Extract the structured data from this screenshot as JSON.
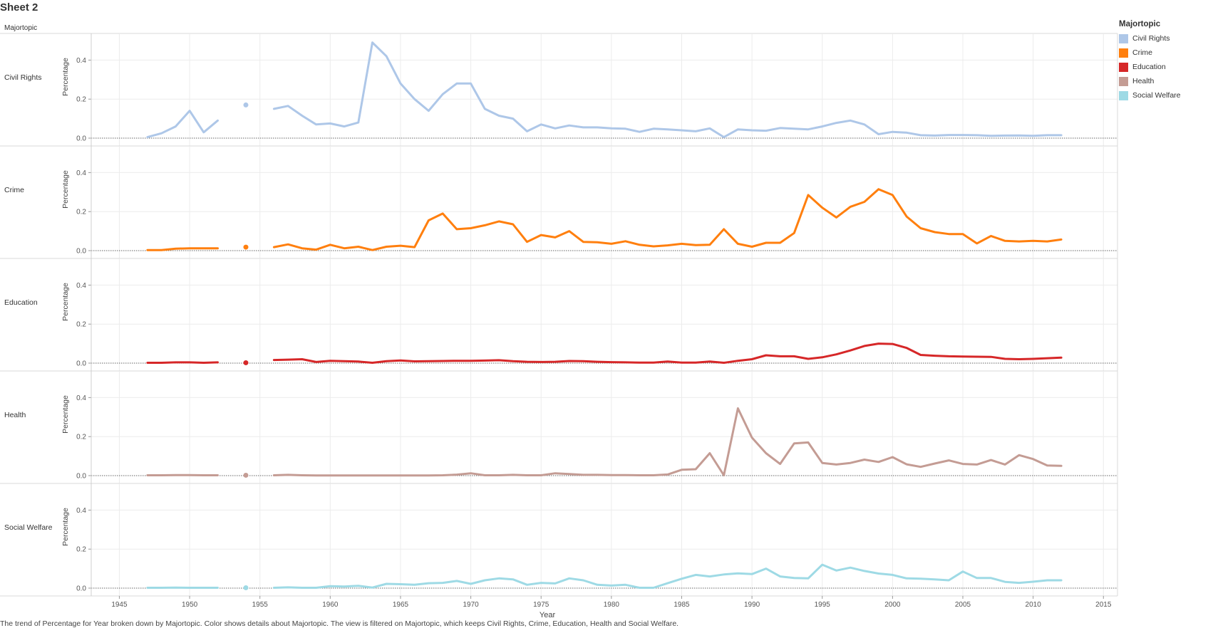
{
  "sheet": {
    "title": "Sheet 2",
    "facet_header": "Majortopic",
    "caption": "The trend of Percentage for Year broken down by Majortopic.  Color shows details about Majortopic. The view is filtered on Majortopic, which keeps Civil Rights, Crime, Education, Health and Social Welfare."
  },
  "legend": {
    "title": "Majortopic",
    "items": [
      {
        "label": "Civil Rights",
        "color": "#aec7e8"
      },
      {
        "label": "Crime",
        "color": "#ff7f0e"
      },
      {
        "label": "Education",
        "color": "#d62728"
      },
      {
        "label": "Health",
        "color": "#c49c94"
      },
      {
        "label": "Social Welfare",
        "color": "#9edae5"
      }
    ]
  },
  "chart_data": {
    "type": "line",
    "xlabel": "Year",
    "ylabel": "Percentage",
    "xlim": [
      1943,
      2016
    ],
    "ylim": [
      0,
      0.5
    ],
    "x_ticks": [
      1945,
      1950,
      1955,
      1960,
      1965,
      1970,
      1975,
      1980,
      1985,
      1990,
      1995,
      2000,
      2005,
      2010,
      2015
    ],
    "x_tick_labels": [
      "1945",
      "1950",
      "1955",
      "1960",
      "1965",
      "1970",
      "1975",
      "1980",
      "1985",
      "1990",
      "1995",
      "2000",
      "2005",
      "2010",
      "2015"
    ],
    "y_ticks": [
      0,
      0.2,
      0.4
    ],
    "y_tick_labels": [
      "0.0",
      "0.2",
      "0.4"
    ],
    "grid": true,
    "legend_position": "right",
    "x": [
      1947,
      1948,
      1949,
      1950,
      1951,
      1952,
      1954,
      1956,
      1957,
      1958,
      1959,
      1960,
      1961,
      1962,
      1963,
      1964,
      1965,
      1966,
      1967,
      1968,
      1969,
      1970,
      1971,
      1972,
      1973,
      1974,
      1975,
      1976,
      1977,
      1978,
      1979,
      1980,
      1981,
      1982,
      1983,
      1984,
      1985,
      1986,
      1987,
      1988,
      1989,
      1990,
      1991,
      1992,
      1993,
      1994,
      1995,
      1996,
      1997,
      1998,
      1999,
      2000,
      2001,
      2002,
      2003,
      2004,
      2005,
      2006,
      2007,
      2008,
      2009,
      2010,
      2011,
      2012
    ],
    "series": [
      {
        "name": "Civil Rights",
        "color": "#aec7e8",
        "values": [
          0.005,
          0.025,
          0.06,
          0.14,
          0.03,
          0.09,
          0.17,
          0.15,
          0.165,
          0.115,
          0.07,
          0.075,
          0.06,
          0.08,
          0.49,
          0.42,
          0.28,
          0.2,
          0.14,
          0.225,
          0.28,
          0.28,
          0.15,
          0.115,
          0.1,
          0.035,
          0.07,
          0.05,
          0.065,
          0.055,
          0.055,
          0.05,
          0.048,
          0.032,
          0.048,
          0.045,
          0.04,
          0.035,
          0.05,
          0.005,
          0.045,
          0.04,
          0.038,
          0.052,
          0.048,
          0.045,
          0.06,
          0.078,
          0.09,
          0.07,
          0.02,
          0.032,
          0.028,
          0.015,
          0.013,
          0.016,
          0.016,
          0.015,
          0.012,
          0.013,
          0.014,
          0.012,
          0.015,
          0.015
        ]
      },
      {
        "name": "Crime",
        "color": "#ff7f0e",
        "values": [
          0.003,
          0.003,
          0.01,
          0.012,
          0.012,
          0.012,
          0.018,
          0.018,
          0.032,
          0.012,
          0.005,
          0.03,
          0.012,
          0.02,
          0.003,
          0.02,
          0.025,
          0.018,
          0.155,
          0.19,
          0.11,
          0.115,
          0.13,
          0.15,
          0.135,
          0.045,
          0.08,
          0.068,
          0.1,
          0.045,
          0.043,
          0.035,
          0.048,
          0.03,
          0.022,
          0.027,
          0.035,
          0.028,
          0.03,
          0.11,
          0.035,
          0.02,
          0.04,
          0.04,
          0.09,
          0.285,
          0.22,
          0.17,
          0.225,
          0.25,
          0.315,
          0.285,
          0.175,
          0.115,
          0.095,
          0.085,
          0.085,
          0.037,
          0.075,
          0.05,
          0.047,
          0.05,
          0.047,
          0.057
        ]
      },
      {
        "name": "Education",
        "color": "#d62728",
        "values": [
          0.002,
          0.002,
          0.004,
          0.004,
          0.002,
          0.004,
          0.002,
          0.016,
          0.018,
          0.02,
          0.006,
          0.012,
          0.01,
          0.008,
          0.002,
          0.01,
          0.014,
          0.009,
          0.01,
          0.011,
          0.012,
          0.012,
          0.013,
          0.015,
          0.01,
          0.007,
          0.006,
          0.007,
          0.011,
          0.01,
          0.007,
          0.005,
          0.004,
          0.003,
          0.003,
          0.008,
          0.003,
          0.003,
          0.008,
          0.002,
          0.012,
          0.02,
          0.04,
          0.035,
          0.035,
          0.022,
          0.03,
          0.045,
          0.065,
          0.088,
          0.1,
          0.098,
          0.078,
          0.042,
          0.038,
          0.035,
          0.034,
          0.033,
          0.032,
          0.022,
          0.02,
          0.022,
          0.025,
          0.028
        ]
      },
      {
        "name": "Health",
        "color": "#c49c94",
        "values": [
          0.002,
          0.002,
          0.003,
          0.003,
          0.002,
          0.002,
          0.002,
          0.002,
          0.004,
          0.002,
          0.001,
          0.001,
          0.001,
          0.001,
          0.001,
          0.001,
          0.001,
          0.001,
          0.001,
          0.002,
          0.005,
          0.012,
          0.002,
          0.002,
          0.004,
          0.002,
          0.002,
          0.012,
          0.008,
          0.004,
          0.004,
          0.003,
          0.003,
          0.002,
          0.002,
          0.006,
          0.03,
          0.033,
          0.115,
          0.002,
          0.345,
          0.195,
          0.115,
          0.06,
          0.165,
          0.17,
          0.065,
          0.057,
          0.065,
          0.082,
          0.07,
          0.095,
          0.058,
          0.045,
          0.062,
          0.078,
          0.06,
          0.057,
          0.08,
          0.057,
          0.105,
          0.085,
          0.052,
          0.05
        ]
      },
      {
        "name": "Social Welfare",
        "color": "#9edae5",
        "values": [
          0.002,
          0.002,
          0.003,
          0.002,
          0.002,
          0.002,
          0.002,
          0.002,
          0.004,
          0.002,
          0.002,
          0.01,
          0.008,
          0.012,
          0.003,
          0.022,
          0.02,
          0.017,
          0.025,
          0.027,
          0.037,
          0.022,
          0.04,
          0.05,
          0.045,
          0.017,
          0.027,
          0.024,
          0.05,
          0.04,
          0.017,
          0.013,
          0.017,
          0.002,
          0.002,
          0.025,
          0.048,
          0.068,
          0.06,
          0.07,
          0.076,
          0.072,
          0.1,
          0.06,
          0.052,
          0.05,
          0.12,
          0.09,
          0.105,
          0.088,
          0.075,
          0.068,
          0.05,
          0.048,
          0.045,
          0.04,
          0.085,
          0.052,
          0.052,
          0.032,
          0.027,
          0.033,
          0.04,
          0.04
        ]
      }
    ]
  }
}
